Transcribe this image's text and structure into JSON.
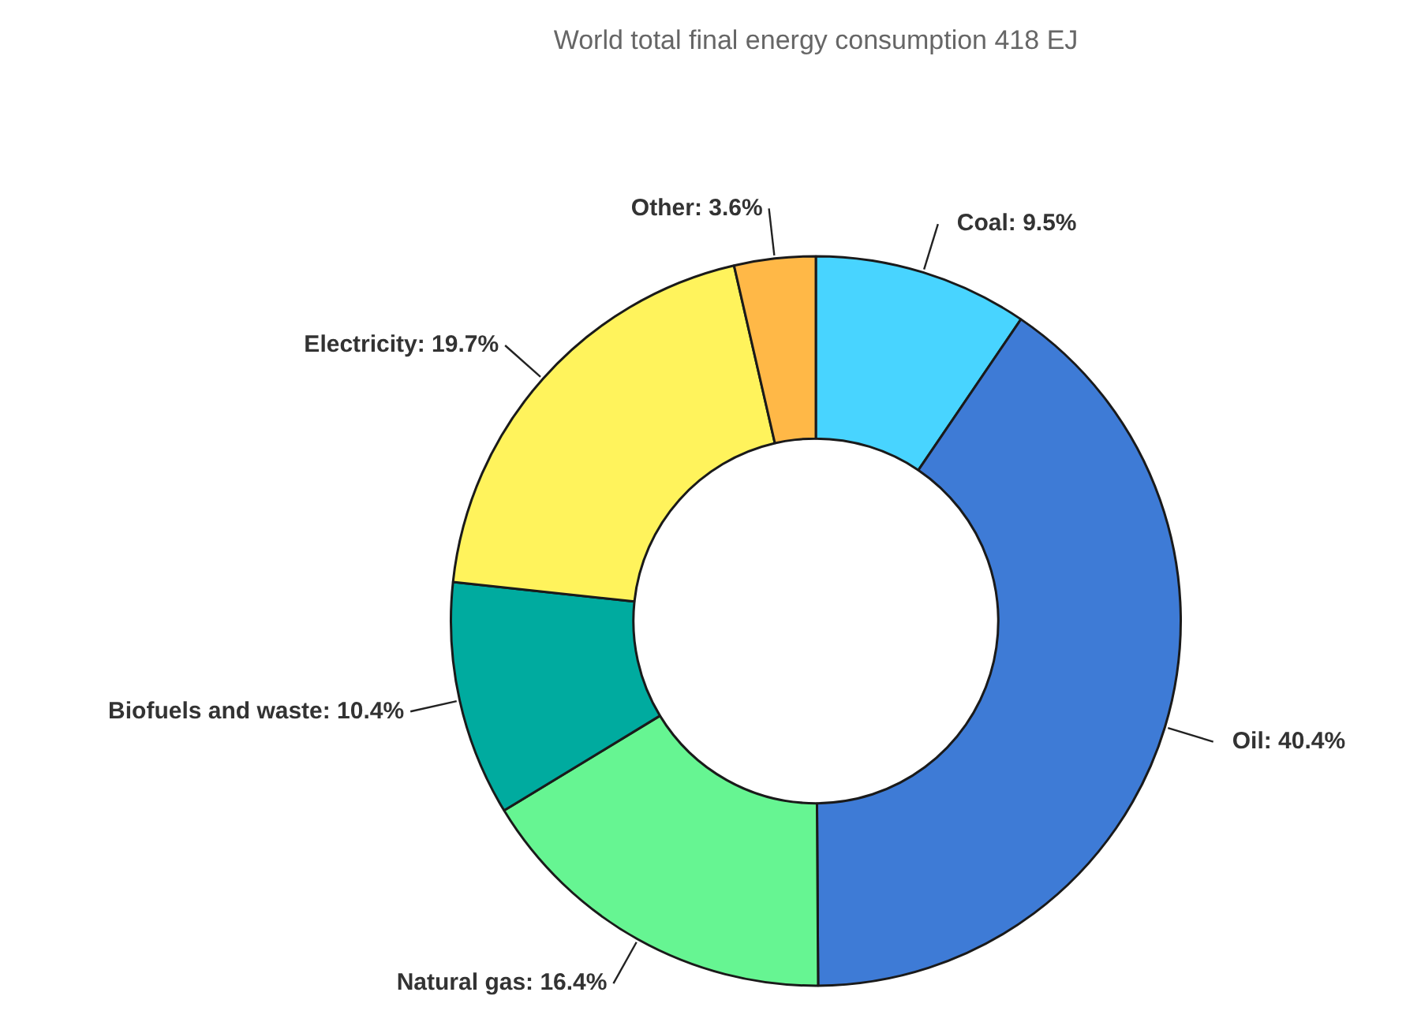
{
  "chart_data": {
    "type": "donut",
    "title": "World total final energy consumption 418 EJ",
    "categories": [
      "Coal",
      "Oil",
      "Natural gas",
      "Biofuels and waste",
      "Electricity",
      "Other"
    ],
    "values": [
      9.5,
      40.4,
      16.4,
      10.4,
      19.7,
      3.6
    ],
    "colors": [
      "#48d4ff",
      "#3e7bd6",
      "#66f592",
      "#00ab9f",
      "#fff35c",
      "#ffb847"
    ],
    "value_labels": [
      ": 9.5%",
      ": 40.4%",
      ": 16.4%",
      ": 10.4%",
      ": 19.7%",
      ": 3.6%"
    ],
    "legend": false
  }
}
